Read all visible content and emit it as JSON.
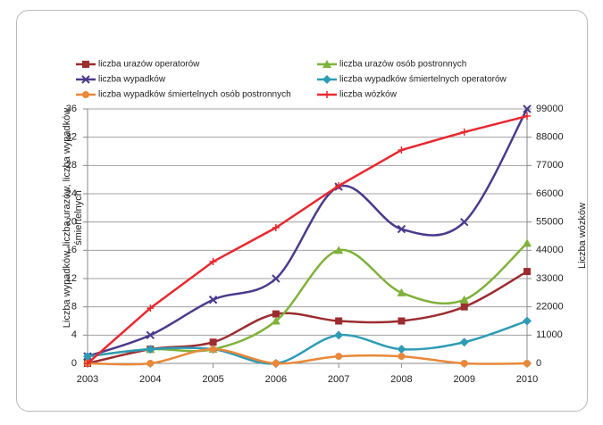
{
  "chart_data": {
    "type": "line",
    "x": [
      "2003",
      "2004",
      "2005",
      "2006",
      "2007",
      "2008",
      "2009",
      "2010"
    ],
    "y_label": "Liczba wypadków, liczba urazów, liczba wypadków śmiertelnych",
    "y2_label": "Liczba wózków",
    "ylim": [
      0,
      36
    ],
    "yticks": [
      0,
      4,
      8,
      12,
      16,
      20,
      24,
      28,
      32,
      36
    ],
    "y2lim": [
      0,
      99000
    ],
    "y2ticks": [
      0,
      11000,
      22000,
      33000,
      44000,
      55000,
      66000,
      77000,
      88000,
      99000
    ],
    "grid": true,
    "series": [
      {
        "name": "liczba urazów operatorów",
        "color": "#9b2d30",
        "marker": "square",
        "values": [
          0,
          2,
          3,
          7,
          6,
          6,
          8,
          13
        ]
      },
      {
        "name": "liczba urazów osób postronnych",
        "color": "#7fb13a",
        "marker": "triangle",
        "values": [
          1,
          2,
          2,
          6,
          16,
          10,
          9,
          17
        ]
      },
      {
        "name": "liczba wypadków",
        "color": "#4b3a8c",
        "marker": "x",
        "values": [
          1,
          4,
          9,
          12,
          25,
          19,
          20,
          36
        ]
      },
      {
        "name": "liczba wypadków śmiertelnych operatorów",
        "color": "#2e9bb5",
        "marker": "diamond",
        "values": [
          1,
          2,
          2,
          0,
          4,
          2,
          3,
          6
        ]
      },
      {
        "name": "liczba wypadków śmiertelnych osób postronnych",
        "color": "#e8883a",
        "marker": "circle",
        "values": [
          0,
          0,
          2,
          0,
          1,
          1,
          0,
          0
        ]
      },
      {
        "name": "liczba wózków",
        "color": "#e8282f",
        "marker": "plus",
        "axis": "y2",
        "values": [
          0,
          21500,
          39600,
          52800,
          69100,
          83000,
          90000,
          96200
        ]
      }
    ]
  }
}
